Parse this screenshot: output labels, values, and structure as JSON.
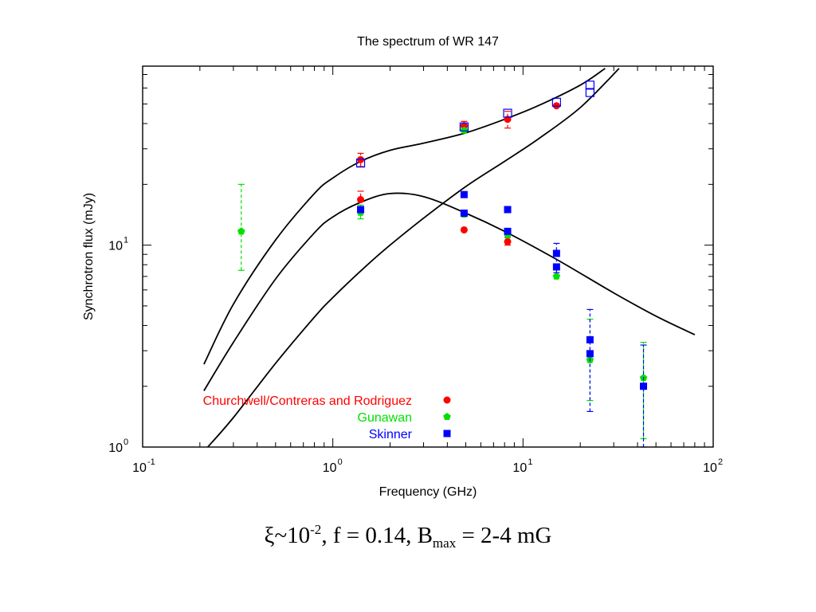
{
  "colors": {
    "churchwell": "#ff0000",
    "gunawan": "#00e000",
    "skinner": "#0000ff",
    "curves": "#000000",
    "axes": "#000000"
  },
  "chart_data": {
    "type": "scatter",
    "title": "The spectrum of WR 147",
    "xlabel": "Frequency (GHz)",
    "ylabel": "Synchrotron flux (mJy)",
    "x_scale": "log",
    "y_scale": "log",
    "xlim": [
      0.1,
      100
    ],
    "ylim": [
      1,
      77
    ],
    "x_ticks": [
      {
        "value": 0.1,
        "base": "10",
        "exp": "-1"
      },
      {
        "value": 1,
        "base": "10",
        "exp": "0"
      },
      {
        "value": 10,
        "base": "10",
        "exp": "1"
      },
      {
        "value": 100,
        "base": "10",
        "exp": "2"
      }
    ],
    "y_ticks": [
      {
        "value": 1,
        "base": "10",
        "exp": "0"
      },
      {
        "value": 10,
        "base": "10",
        "exp": "1"
      }
    ],
    "legend_position": "bottom-left",
    "series": [
      {
        "name": "Churchwell/Contreras and Rodriguez",
        "marker": "circle",
        "color_key": "churchwell",
        "points": [
          {
            "x": 1.4,
            "y": 26.5,
            "lo": 24.5,
            "hi": 28.5
          },
          {
            "x": 1.4,
            "y": 16.8,
            "lo": 15.3,
            "hi": 18.5
          },
          {
            "x": 4.9,
            "y": 39.0,
            "lo": 37.5,
            "hi": 41.0
          },
          {
            "x": 4.9,
            "y": 11.9
          },
          {
            "x": 8.3,
            "y": 42.0,
            "lo": 38.0,
            "hi": 46.0
          },
          {
            "x": 8.3,
            "y": 10.4,
            "lo": 10.0,
            "hi": 10.9
          },
          {
            "x": 15.0,
            "y": 49.0
          }
        ]
      },
      {
        "name": "Gunawan",
        "marker": "pentagon",
        "color_key": "gunawan",
        "points": [
          {
            "x": 0.33,
            "y": 11.7,
            "lo": 7.5,
            "hi": 20.0
          },
          {
            "x": 1.4,
            "y": 14.5,
            "lo": 13.5,
            "hi": 15.8
          },
          {
            "x": 4.9,
            "y": 37.0
          },
          {
            "x": 4.9,
            "y": 14.2
          },
          {
            "x": 8.3,
            "y": 11.2
          },
          {
            "x": 15.0,
            "y": 7.0
          },
          {
            "x": 22.5,
            "y": 2.7,
            "lo": 1.7,
            "hi": 4.3
          },
          {
            "x": 43.0,
            "y": 2.2,
            "lo": 1.1,
            "hi": 3.3
          }
        ]
      },
      {
        "name": "Skinner",
        "marker": "square",
        "color_key": "skinner",
        "points": [
          {
            "x": 1.4,
            "y": 15.0
          },
          {
            "x": 4.9,
            "y": 17.8
          },
          {
            "x": 4.9,
            "y": 14.4
          },
          {
            "x": 8.3,
            "y": 15.0
          },
          {
            "x": 8.3,
            "y": 11.7
          },
          {
            "x": 15.0,
            "y": 9.1,
            "lo": 7.3,
            "hi": 10.2
          },
          {
            "x": 15.0,
            "y": 7.8
          },
          {
            "x": 22.5,
            "y": 3.4,
            "lo": 1.5,
            "hi": 4.8
          },
          {
            "x": 22.5,
            "y": 2.9
          },
          {
            "x": 43.0,
            "y": 2.0,
            "lo": 1.0,
            "hi": 3.2
          }
        ]
      },
      {
        "name": "",
        "marker": "open-square",
        "color_key": "skinner",
        "in_legend": false,
        "points": [
          {
            "x": 1.4,
            "y": 25.5
          },
          {
            "x": 4.9,
            "y": 38.5
          },
          {
            "x": 8.3,
            "y": 45.0
          },
          {
            "x": 15.0,
            "y": 51.0
          },
          {
            "x": 22.5,
            "y": 62.0
          },
          {
            "x": 22.5,
            "y": 57.0
          }
        ]
      }
    ],
    "model_curves": [
      {
        "label": "total",
        "points": [
          [
            0.21,
            2.57
          ],
          [
            0.3,
            5.1
          ],
          [
            0.5,
            10.6
          ],
          [
            0.8,
            18.0
          ],
          [
            1.0,
            21.5
          ],
          [
            1.4,
            26.0
          ],
          [
            2.0,
            29.5
          ],
          [
            3.0,
            32.0
          ],
          [
            5.0,
            36.0
          ],
          [
            8.0,
            42.0
          ],
          [
            12.0,
            49.0
          ],
          [
            20.0,
            62.0
          ],
          [
            27.0,
            75.0
          ]
        ]
      },
      {
        "label": "low-frequency",
        "points": [
          [
            0.21,
            1.9
          ],
          [
            0.3,
            3.3
          ],
          [
            0.5,
            6.8
          ],
          [
            0.8,
            11.5
          ],
          [
            1.0,
            13.8
          ],
          [
            1.4,
            16.3
          ],
          [
            2.0,
            18.0
          ],
          [
            3.0,
            17.4
          ],
          [
            5.0,
            14.4
          ],
          [
            8.0,
            11.7
          ],
          [
            15.0,
            8.5
          ],
          [
            30.0,
            5.8
          ],
          [
            50.0,
            4.45
          ],
          [
            80.0,
            3.6
          ]
        ]
      },
      {
        "label": "high-frequency",
        "points": [
          [
            0.22,
            1.0
          ],
          [
            0.3,
            1.4
          ],
          [
            0.5,
            2.6
          ],
          [
            0.8,
            4.4
          ],
          [
            1.0,
            5.5
          ],
          [
            1.5,
            7.9
          ],
          [
            2.0,
            10.0
          ],
          [
            3.0,
            13.6
          ],
          [
            5.0,
            19.5
          ],
          [
            8.0,
            26.0
          ],
          [
            12.0,
            33.5
          ],
          [
            20.0,
            48.0
          ],
          [
            32.0,
            75.0
          ]
        ]
      }
    ],
    "caption": {
      "xi_base": "ξ~10",
      "xi_exp": "-2",
      "rest": ", f = 0.14, B",
      "b_sub": "max",
      "b_value": " = 2-4 mG"
    }
  }
}
